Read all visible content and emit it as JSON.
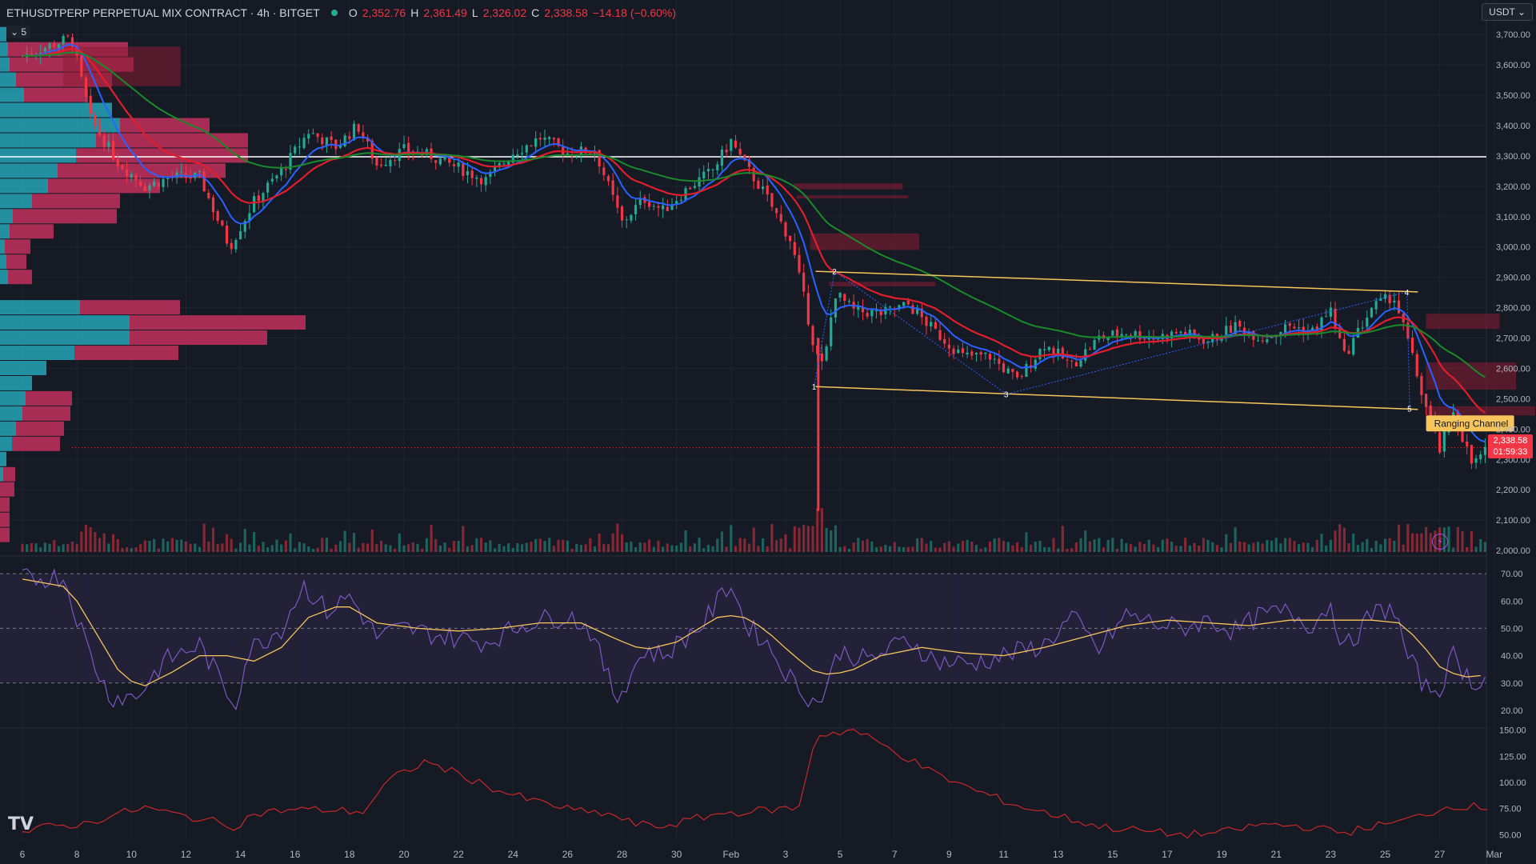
{
  "header": {
    "symbol_title": "ETHUSDTPERP PERPETUAL MIX CONTRACT · 4h · BITGET",
    "open_label": "O",
    "open": "2,352.76",
    "high_label": "H",
    "high": "2,361.49",
    "low_label": "L",
    "low": "2,326.02",
    "close_label": "C",
    "close": "2,338.58",
    "change": "−14.18 (−0.60%)",
    "indicator_count": "5",
    "currency": "USDT"
  },
  "price_tag": {
    "price": "2,338.58",
    "countdown": "01:59:33"
  },
  "annotation": {
    "channel_label": "Ranging Channel",
    "points": [
      "1",
      "2",
      "3",
      "4",
      "5"
    ]
  },
  "colors": {
    "up": "#22ab94",
    "down": "#f23645",
    "ema_fast": "#2962ff",
    "ema_mid": "#e01e2c",
    "ema_slow": "#1b8a2a",
    "channel": "#f7c55b",
    "rsi": "#7e57c2",
    "rsi_ma": "#f7c55b",
    "lower": "#c62828"
  },
  "icons": {
    "logo": "tradingview-logo-icon",
    "bolt": "lightning-icon"
  },
  "chart_data": [
    {
      "type": "candlestick",
      "title": "",
      "y_ticks": [
        "3,700.00",
        "3,600.00",
        "3,500.00",
        "3,400.00",
        "3,300.00",
        "3,200.00",
        "3,100.00",
        "3,000.00",
        "2,900.00",
        "2,800.00",
        "2,700.00",
        "2,600.00",
        "2,500.00",
        "2,400.00",
        "2,300.00",
        "2,200.00",
        "2,100.00",
        "2,000.00"
      ],
      "ylim": [
        1995,
        3740
      ],
      "x_ticks": [
        "6",
        "8",
        "10",
        "12",
        "14",
        "16",
        "18",
        "20",
        "22",
        "24",
        "26",
        "28",
        "30",
        "Feb",
        "3",
        "5",
        "7",
        "9",
        "11",
        "13",
        "15",
        "17",
        "19",
        "21",
        "23",
        "25",
        "27",
        "Mar"
      ],
      "horizontal_line": 3297,
      "current_price": 2338.58,
      "price_path": [
        {
          "t": 0,
          "p": 3630
        },
        {
          "t": 1.8,
          "p": 3690
        },
        {
          "t": 2.5,
          "p": 3420
        },
        {
          "t": 3.5,
          "p": 3280
        },
        {
          "t": 4.5,
          "p": 3200
        },
        {
          "t": 5.5,
          "p": 3230
        },
        {
          "t": 6.5,
          "p": 3230
        },
        {
          "t": 7.6,
          "p": 3000
        },
        {
          "t": 8.5,
          "p": 3150
        },
        {
          "t": 9.5,
          "p": 3250
        },
        {
          "t": 10.5,
          "p": 3380
        },
        {
          "t": 11.5,
          "p": 3330
        },
        {
          "t": 12.3,
          "p": 3400
        },
        {
          "t": 13,
          "p": 3270
        },
        {
          "t": 14,
          "p": 3320
        },
        {
          "t": 15,
          "p": 3300
        },
        {
          "t": 16,
          "p": 3260
        },
        {
          "t": 17,
          "p": 3220
        },
        {
          "t": 18,
          "p": 3310
        },
        {
          "t": 19,
          "p": 3360
        },
        {
          "t": 20,
          "p": 3310
        },
        {
          "t": 21,
          "p": 3320
        },
        {
          "t": 21.5,
          "p": 3200
        },
        {
          "t": 22,
          "p": 3080
        },
        {
          "t": 22.8,
          "p": 3160
        },
        {
          "t": 23.5,
          "p": 3120
        },
        {
          "t": 24.5,
          "p": 3200
        },
        {
          "t": 25.3,
          "p": 3250
        },
        {
          "t": 26,
          "p": 3350
        },
        {
          "t": 26.5,
          "p": 3270
        },
        {
          "t": 27.2,
          "p": 3180
        },
        {
          "t": 28.2,
          "p": 3020
        },
        {
          "t": 28.7,
          "p": 2820
        },
        {
          "t": 29.1,
          "p": 2650
        },
        {
          "t": 29.4,
          "p": 2600
        },
        {
          "t": 29.8,
          "p": 2850
        },
        {
          "t": 30.5,
          "p": 2790
        },
        {
          "t": 31.5,
          "p": 2780
        },
        {
          "t": 32.5,
          "p": 2810
        },
        {
          "t": 33.5,
          "p": 2720
        },
        {
          "t": 34.5,
          "p": 2640
        },
        {
          "t": 35.5,
          "p": 2640
        },
        {
          "t": 36.5,
          "p": 2560
        },
        {
          "t": 37.5,
          "p": 2680
        },
        {
          "t": 38.5,
          "p": 2610
        },
        {
          "t": 39.5,
          "p": 2700
        },
        {
          "t": 40.5,
          "p": 2720
        },
        {
          "t": 41.5,
          "p": 2700
        },
        {
          "t": 42.5,
          "p": 2720
        },
        {
          "t": 43.5,
          "p": 2690
        },
        {
          "t": 44.5,
          "p": 2740
        },
        {
          "t": 45.5,
          "p": 2700
        },
        {
          "t": 46.5,
          "p": 2740
        },
        {
          "t": 47.3,
          "p": 2720
        },
        {
          "t": 48,
          "p": 2790
        },
        {
          "t": 48.5,
          "p": 2640
        },
        {
          "t": 49.5,
          "p": 2800
        },
        {
          "t": 50.3,
          "p": 2840
        },
        {
          "t": 50.8,
          "p": 2700
        },
        {
          "t": 51.4,
          "p": 2500
        },
        {
          "t": 52,
          "p": 2330
        },
        {
          "t": 52.5,
          "p": 2460
        },
        {
          "t": 53.2,
          "p": 2280
        },
        {
          "t": 53.8,
          "p": 2340
        }
      ],
      "candles_per_day": 6,
      "channel": {
        "upper": [
          [
            29.1,
            2920
          ],
          [
            51.2,
            2852
          ]
        ],
        "lower": [
          [
            29.1,
            2540
          ],
          [
            51.2,
            2465
          ]
        ],
        "point_labels": [
          [
            "1",
            29.05,
            2540
          ],
          [
            "2",
            29.8,
            2920
          ],
          [
            "3",
            36.1,
            2515
          ],
          [
            "4",
            50.8,
            2852
          ],
          [
            "5",
            50.9,
            2468
          ]
        ]
      },
      "volume_profile_levels": [
        2050,
        2100,
        2150,
        2200,
        2250,
        2300,
        2350,
        2400,
        2450,
        2500,
        2550,
        2600,
        2650,
        2700,
        2750,
        2800,
        2850,
        2900,
        2950,
        3000,
        3050,
        3100,
        3150,
        3200,
        3250,
        3300,
        3350,
        3400,
        3450,
        3500,
        3550,
        3600,
        3650,
        3700
      ],
      "volume_profile_buy": [
        0,
        0,
        0,
        0,
        4,
        8,
        15,
        20,
        28,
        32,
        40,
        58,
        93,
        162,
        162,
        100,
        0,
        10,
        8,
        6,
        12,
        16,
        40,
        60,
        72,
        95,
        120,
        150,
        140,
        30,
        20,
        12,
        10,
        8
      ],
      "volume_profile_sell": [
        12,
        12,
        12,
        18,
        15,
        0,
        60,
        60,
        60,
        58,
        0,
        0,
        130,
        172,
        220,
        125,
        0,
        30,
        25,
        32,
        55,
        130,
        110,
        140,
        210,
        215,
        190,
        112,
        0,
        80,
        120,
        155,
        150,
        0
      ],
      "supply_zones": [
        [
          28.3,
          32.3,
          3210,
          3190
        ],
        [
          28.4,
          32.5,
          3170,
          3160
        ],
        [
          28.9,
          32.9,
          3045,
          2990
        ],
        [
          29.6,
          33.5,
          2885,
          2870
        ],
        [
          51.5,
          54.2,
          2780,
          2730
        ],
        [
          51.5,
          54.8,
          2620,
          2530
        ],
        [
          51.5,
          55.5,
          2475,
          2445
        ],
        [
          1.5,
          5.8,
          3660,
          3530
        ]
      ],
      "volume_bars_sample": "daily volume bars along bottom of price pane",
      "ema_lines": [
        "fast",
        "mid",
        "slow"
      ]
    },
    {
      "type": "line",
      "title": "",
      "y_ticks": [
        "70.00",
        "60.00",
        "50.00",
        "40.00",
        "30.00",
        "20.00"
      ],
      "ylim": [
        15,
        75
      ],
      "bands": [
        30,
        50,
        70
      ],
      "series": [
        {
          "values_path": [
            [
              0,
              68
            ],
            [
              1.5,
              69
            ],
            [
              2.5,
              40
            ],
            [
              3.2,
              25
            ],
            [
              4.2,
              25
            ],
            [
              5.2,
              38
            ],
            [
              6.5,
              44
            ],
            [
              7.8,
              22
            ],
            [
              8.3,
              42
            ],
            [
              9.5,
              50
            ],
            [
              10.3,
              66
            ],
            [
              11.2,
              56
            ],
            [
              12,
              62
            ],
            [
              13,
              47
            ],
            [
              14,
              50
            ],
            [
              15.5,
              47
            ],
            [
              17,
              45
            ],
            [
              18.5,
              52
            ],
            [
              20,
              55
            ],
            [
              20.8,
              50
            ],
            [
              21.8,
              24
            ],
            [
              22.8,
              42
            ],
            [
              23.5,
              40
            ],
            [
              25,
              52
            ],
            [
              26,
              67
            ],
            [
              26.5,
              52
            ],
            [
              27.2,
              46
            ],
            [
              28.3,
              30
            ],
            [
              29.2,
              22
            ],
            [
              30,
              42
            ],
            [
              31,
              38
            ],
            [
              32.5,
              46
            ],
            [
              33.5,
              38
            ],
            [
              34.8,
              37
            ],
            [
              36,
              40
            ],
            [
              37.5,
              44
            ],
            [
              38.5,
              54
            ],
            [
              39.5,
              42
            ],
            [
              40.5,
              55
            ],
            [
              41.5,
              52
            ],
            [
              42.5,
              50
            ],
            [
              43.5,
              53
            ],
            [
              44.5,
              49
            ],
            [
              45.5,
              55
            ],
            [
              46.5,
              56
            ],
            [
              47.3,
              51
            ],
            [
              48,
              59
            ],
            [
              48.5,
              42
            ],
            [
              49.5,
              55
            ],
            [
              50.3,
              58
            ],
            [
              50.8,
              40
            ],
            [
              51.5,
              28
            ],
            [
              52,
              28
            ],
            [
              52.5,
              40
            ],
            [
              53.2,
              30
            ],
            [
              53.8,
              33
            ]
          ]
        },
        {
          "values_path": [
            [
              0,
              68
            ],
            [
              1.7,
              65
            ],
            [
              2.6,
              50
            ],
            [
              3.5,
              35
            ],
            [
              4.3,
              28
            ],
            [
              5.5,
              34
            ],
            [
              6.5,
              40
            ],
            [
              7.5,
              40
            ],
            [
              8.5,
              38
            ],
            [
              9.5,
              43
            ],
            [
              10.5,
              54
            ],
            [
              11.8,
              59
            ],
            [
              13,
              52
            ],
            [
              14.5,
              50
            ],
            [
              16,
              49
            ],
            [
              17.5,
              50
            ],
            [
              19,
              52
            ],
            [
              20.5,
              52
            ],
            [
              21.8,
              46
            ],
            [
              22.8,
              42
            ],
            [
              24,
              45
            ],
            [
              25.5,
              54
            ],
            [
              26.3,
              55
            ],
            [
              27.2,
              50
            ],
            [
              28.3,
              40
            ],
            [
              29.2,
              33
            ],
            [
              30.3,
              34
            ],
            [
              31.5,
              40
            ],
            [
              33,
              43
            ],
            [
              34.5,
              41
            ],
            [
              36,
              40
            ],
            [
              37.5,
              43
            ],
            [
              39,
              47
            ],
            [
              40.5,
              51
            ],
            [
              42,
              53
            ],
            [
              43.5,
              52
            ],
            [
              45,
              51
            ],
            [
              46.5,
              53
            ],
            [
              48,
              53
            ],
            [
              49.5,
              53
            ],
            [
              50.5,
              52
            ],
            [
              51.2,
              46
            ],
            [
              52,
              36
            ],
            [
              52.8,
              32
            ],
            [
              53.8,
              33
            ]
          ]
        }
      ]
    },
    {
      "type": "line",
      "title": "",
      "y_ticks": [
        "150.00",
        "125.00",
        "100.00",
        "75.00",
        "50.00"
      ],
      "ylim": [
        45,
        152
      ],
      "series": [
        {
          "values_path": [
            [
              0,
              52
            ],
            [
              1,
              58
            ],
            [
              2.2,
              60
            ],
            [
              3.5,
              70
            ],
            [
              4.5,
              76
            ],
            [
              5.5,
              70
            ],
            [
              6.8,
              64
            ],
            [
              7.8,
              58
            ],
            [
              8.5,
              70
            ],
            [
              9.8,
              74
            ],
            [
              11,
              74
            ],
            [
              12.5,
              72
            ],
            [
              13.5,
              103
            ],
            [
              14.8,
              120
            ],
            [
              16,
              108
            ],
            [
              17.5,
              92
            ],
            [
              18.5,
              84
            ],
            [
              19.5,
              78
            ],
            [
              20.5,
              72
            ],
            [
              21.5,
              70
            ],
            [
              22.5,
              60
            ],
            [
              23.5,
              58
            ],
            [
              24.5,
              64
            ],
            [
              25.5,
              70
            ],
            [
              26.5,
              72
            ],
            [
              27.5,
              74
            ],
            [
              28.5,
              76
            ],
            [
              29.1,
              145
            ],
            [
              30.5,
              150
            ],
            [
              32,
              130
            ],
            [
              33.5,
              108
            ],
            [
              35,
              92
            ],
            [
              36.5,
              78
            ],
            [
              38,
              68
            ],
            [
              39.5,
              58
            ],
            [
              41,
              54
            ],
            [
              42.5,
              50
            ],
            [
              44,
              52
            ],
            [
              45.5,
              60
            ],
            [
              47,
              58
            ],
            [
              48.5,
              52
            ],
            [
              49.5,
              58
            ],
            [
              50.5,
              62
            ],
            [
              51.5,
              70
            ],
            [
              52.5,
              78
            ],
            [
              53.8,
              76
            ]
          ]
        }
      ]
    }
  ]
}
